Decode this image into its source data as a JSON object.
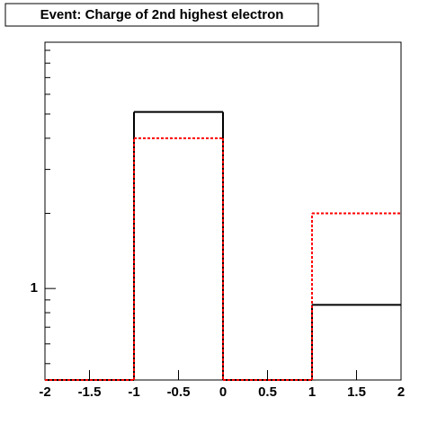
{
  "chart_data": {
    "type": "histogram",
    "title": "Event: Charge of 2nd highest electron",
    "bins": [
      -2,
      -1,
      0,
      1,
      2
    ],
    "series": [
      {
        "color": "#000000",
        "dashed": false,
        "values": [
          0,
          5.1,
          0,
          0.86
        ]
      },
      {
        "color": "#ff0000",
        "dashed": true,
        "values": [
          0,
          4.0,
          0,
          2.0
        ]
      }
    ],
    "xlim": [
      -2,
      2
    ],
    "xticks": [
      -2,
      -1.5,
      -1,
      -0.5,
      0,
      0.5,
      1,
      1.5,
      2
    ],
    "ylim": [
      0.43,
      9.7
    ],
    "ylog": true,
    "yticks": [
      1
    ],
    "yminorticks": [
      0.5,
      0.6,
      0.7,
      0.8,
      0.9,
      2,
      3,
      4,
      5,
      6,
      7,
      8,
      9
    ]
  }
}
